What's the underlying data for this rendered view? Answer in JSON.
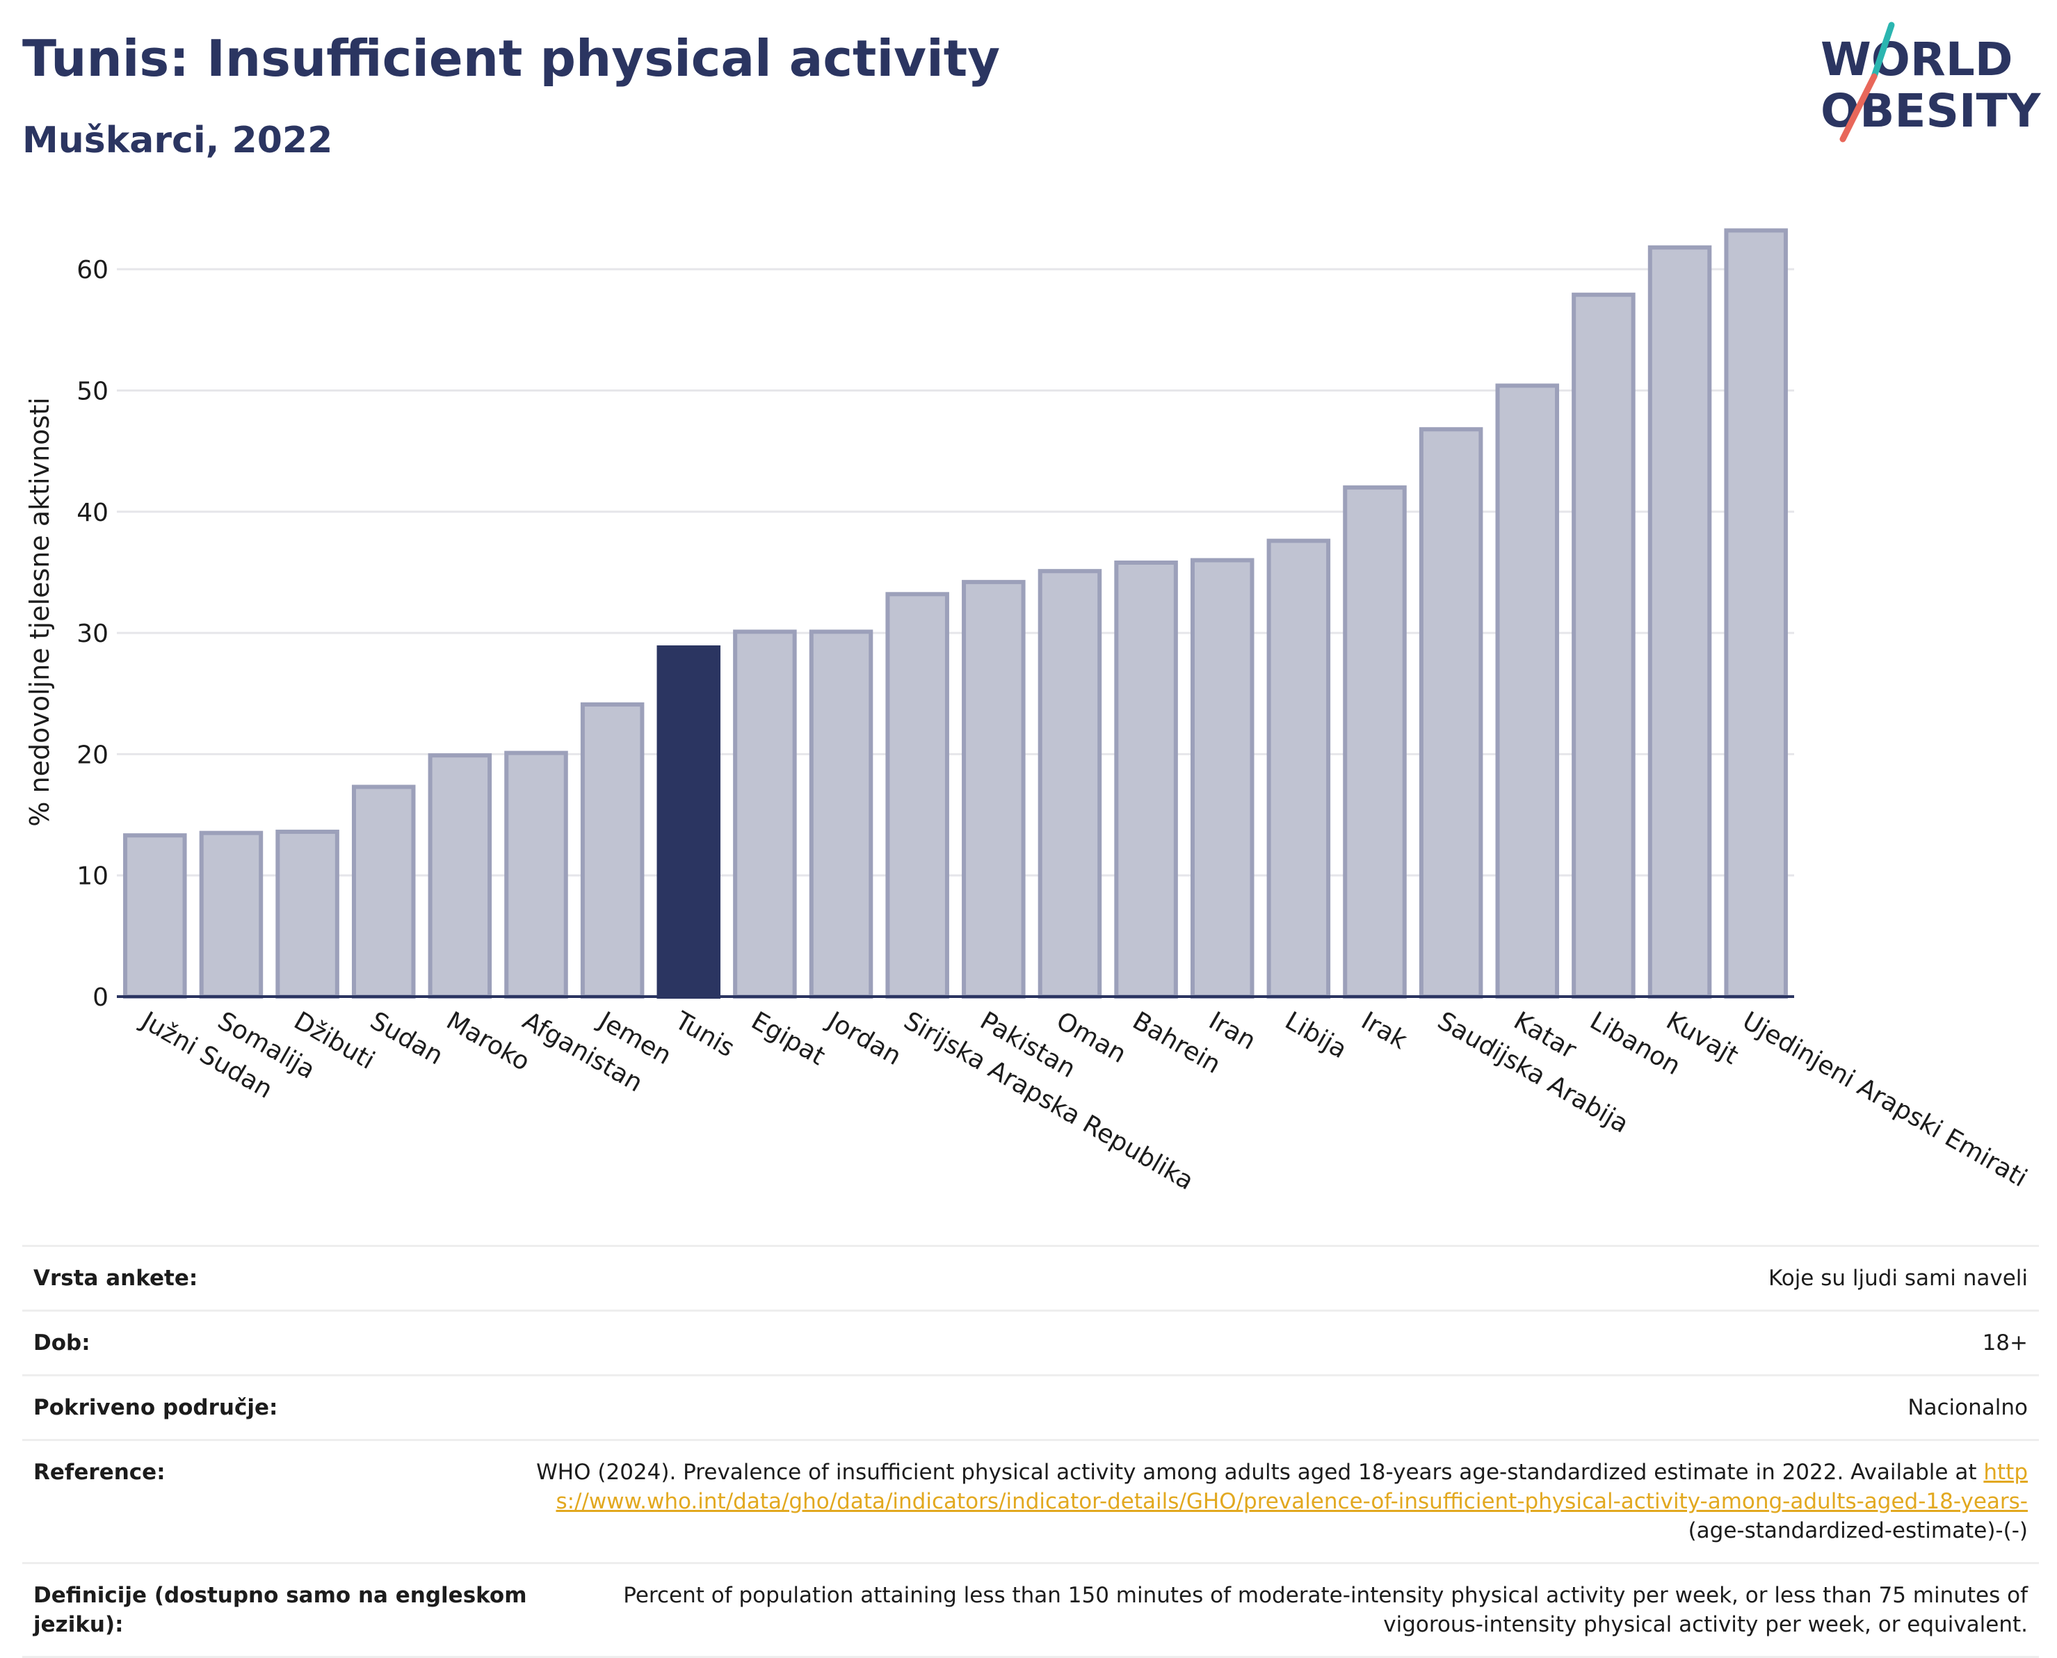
{
  "header": {
    "title": "Tunis: Insufficient physical activity",
    "subtitle": "Muškarci, 2022"
  },
  "logo": {
    "line1": "WORLD",
    "line2": "OBESITY"
  },
  "colors": {
    "highlight": "#2b3561",
    "bar": "#c0c3d2",
    "bar_stroke": "#9ca0ba",
    "title": "#2b3561",
    "link": "#e2a81f"
  },
  "chart_data": {
    "type": "bar",
    "title": "",
    "xlabel": "",
    "ylabel": "% nedovoljne tjelesne aktivnosti",
    "ylim": [
      0,
      65
    ],
    "yticks": [
      0,
      10,
      20,
      30,
      40,
      50,
      60
    ],
    "grid": true,
    "highlight": "Tunis",
    "categories": [
      "Južni Sudan",
      "Somalija",
      "Džibuti",
      "Sudan",
      "Maroko",
      "Afganistan",
      "Jemen",
      "Tunis",
      "Egipat",
      "Jordan",
      "Sirijska Arapska Republika",
      "Pakistan",
      "Oman",
      "Bahrein",
      "Iran",
      "Libija",
      "Irak",
      "Saudijska Arabija",
      "Katar",
      "Libanon",
      "Kuvajt",
      "Ujedinjeni Arapski Emirati"
    ],
    "values": [
      13.3,
      13.5,
      13.6,
      17.3,
      19.9,
      20.1,
      24.1,
      28.8,
      30.1,
      30.1,
      33.2,
      34.2,
      35.1,
      35.8,
      36.0,
      37.6,
      42.0,
      46.8,
      50.4,
      57.9,
      61.8,
      63.2
    ]
  },
  "info": {
    "survey_label": "Vrsta ankete:",
    "survey_value": "Koje su ljudi sami naveli",
    "age_label": "Dob:",
    "age_value": "18+",
    "coverage_label": "Pokriveno područje:",
    "coverage_value": "Nacionalno",
    "reference_label": "Reference:",
    "reference_text": "WHO (2024). Prevalence of insufficient physical activity among adults aged 18-years age-standardized estimate in 2022. Available at",
    "reference_link": "https://www.who.int/data/gho/data/indicators/indicator-details/GHO/prevalence-of-insufficient-physical-activity-among-adults-aged-18-years-",
    "reference_tail": "(age-standardized-estimate)-(-)",
    "definition_label": "Definicije (dostupno samo na engleskom jeziku):",
    "definition_value": "Percent of population attaining less than 150 minutes of moderate-intensity physical activity per week, or less than 75 minutes of vigorous-intensity physical activity per week, or equivalent."
  }
}
